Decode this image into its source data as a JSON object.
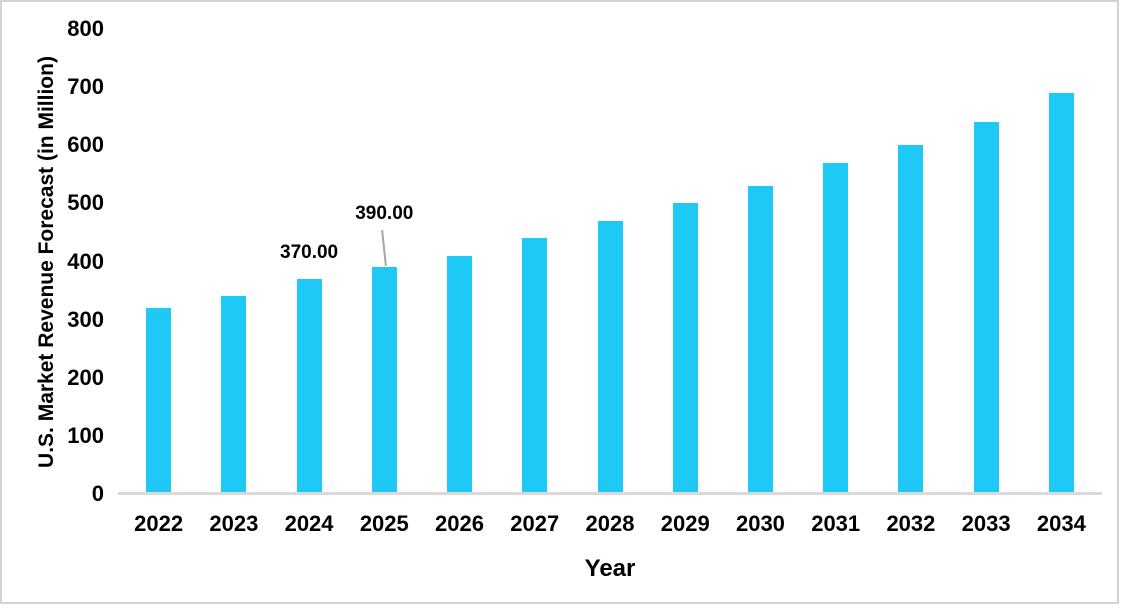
{
  "chart_data": {
    "type": "bar",
    "title": "",
    "xlabel": "Year",
    "ylabel": "U.S. Market Revenue Forecast (in Million)",
    "categories": [
      "2022",
      "2023",
      "2024",
      "2025",
      "2026",
      "2027",
      "2028",
      "2029",
      "2030",
      "2031",
      "2032",
      "2033",
      "2034"
    ],
    "values": [
      320,
      340,
      370,
      390,
      410,
      440,
      470,
      500,
      530,
      570,
      600,
      640,
      690
    ],
    "ylim": [
      0,
      800
    ],
    "yticks": [
      0,
      100,
      200,
      300,
      400,
      500,
      600,
      700,
      800
    ],
    "grid": false,
    "legend": "none",
    "bar_color": "#1ec9f5",
    "axis_line_color": "#d9d9d9",
    "frame_border_color": "#d3d3d3",
    "leader_line_color": "#a6a6a6",
    "text_color": "#000000",
    "data_labels": [
      {
        "index": 2,
        "text": "370.00",
        "gap": 16,
        "leader": false
      },
      {
        "index": 3,
        "text": "390.00",
        "gap": 43,
        "leader": true
      }
    ]
  }
}
